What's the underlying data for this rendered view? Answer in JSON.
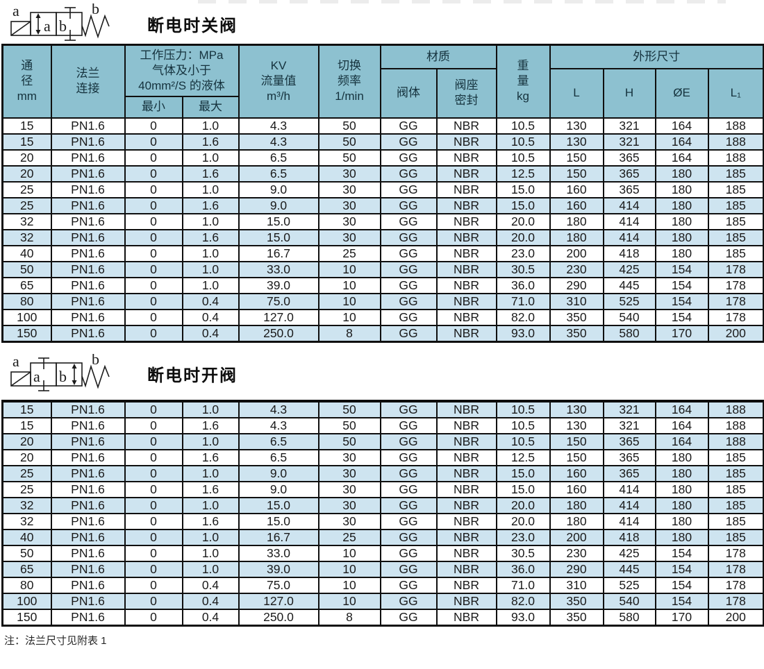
{
  "colors": {
    "header_bg": "#8dc1d0",
    "row_shaded_bg": "#cee4f0",
    "row_bg": "#ffffff",
    "border": "#0f0f0f",
    "text": "#1a1a1a"
  },
  "table_header": {
    "diameter": "通\n径\nmm",
    "flange": "法兰\n连接",
    "pressure": "工作压力：MPa\n气体及小于\n40mm²/S 的液体",
    "pressure_min": "最小",
    "pressure_max": "最大",
    "kv": "KV\n流量值\nm³/h",
    "frequency": "切换\n频率\n1/min",
    "material": "材质",
    "material_body": "阀体",
    "material_seal": "阀座\n密封",
    "weight": "重\n量\nkg",
    "dimensions": "外形尺寸",
    "dim_l": "L",
    "dim_h": "H",
    "dim_e": "ØE",
    "dim_l1": "L₁"
  },
  "sections": [
    {
      "title": "断电时关阀",
      "symbol_labels": {
        "port_a": "a",
        "position_a": "a",
        "position_b": "b",
        "spring_b": "b"
      },
      "first_row_shaded": false,
      "rows": [
        [
          "15",
          "PN1.6",
          "0",
          "1.0",
          "4.3",
          "50",
          "GG",
          "NBR",
          "10.5",
          "130",
          "321",
          "164",
          "188"
        ],
        [
          "15",
          "PN1.6",
          "0",
          "1.6",
          "4.3",
          "50",
          "GG",
          "NBR",
          "10.5",
          "130",
          "321",
          "164",
          "188"
        ],
        [
          "20",
          "PN1.6",
          "0",
          "1.0",
          "6.5",
          "50",
          "GG",
          "NBR",
          "10.5",
          "150",
          "365",
          "164",
          "188"
        ],
        [
          "20",
          "PN1.6",
          "0",
          "1.6",
          "6.5",
          "30",
          "GG",
          "NBR",
          "12.5",
          "150",
          "365",
          "180",
          "185"
        ],
        [
          "25",
          "PN1.6",
          "0",
          "1.0",
          "9.0",
          "30",
          "GG",
          "NBR",
          "15.0",
          "160",
          "365",
          "180",
          "185"
        ],
        [
          "25",
          "PN1.6",
          "0",
          "1.6",
          "9.0",
          "30",
          "GG",
          "NBR",
          "15.0",
          "160",
          "414",
          "180",
          "185"
        ],
        [
          "32",
          "PN1.6",
          "0",
          "1.0",
          "15.0",
          "30",
          "GG",
          "NBR",
          "20.0",
          "180",
          "414",
          "180",
          "185"
        ],
        [
          "32",
          "PN1.6",
          "0",
          "1.6",
          "15.0",
          "30",
          "GG",
          "NBR",
          "20.0",
          "180",
          "414",
          "180",
          "185"
        ],
        [
          "40",
          "PN1.6",
          "0",
          "1.0",
          "16.7",
          "25",
          "GG",
          "NBR",
          "23.0",
          "200",
          "418",
          "180",
          "185"
        ],
        [
          "50",
          "PN1.6",
          "0",
          "1.0",
          "33.0",
          "10",
          "GG",
          "NBR",
          "30.5",
          "230",
          "425",
          "154",
          "178"
        ],
        [
          "65",
          "PN1.6",
          "0",
          "1.0",
          "39.0",
          "10",
          "GG",
          "NBR",
          "36.0",
          "290",
          "445",
          "154",
          "178"
        ],
        [
          "80",
          "PN1.6",
          "0",
          "0.4",
          "75.0",
          "10",
          "GG",
          "NBR",
          "71.0",
          "310",
          "525",
          "154",
          "178"
        ],
        [
          "100",
          "PN1.6",
          "0",
          "0.4",
          "127.0",
          "10",
          "GG",
          "NBR",
          "82.0",
          "350",
          "540",
          "154",
          "178"
        ],
        [
          "150",
          "PN1.6",
          "0",
          "0.4",
          "250.0",
          "8",
          "GG",
          "NBR",
          "93.0",
          "350",
          "580",
          "170",
          "200"
        ]
      ]
    },
    {
      "title": "断电时开阀",
      "symbol_labels": {
        "port_a": "a",
        "position_a": "a",
        "position_b": "b",
        "spring_b": "b"
      },
      "first_row_shaded": true,
      "rows": [
        [
          "15",
          "PN1.6",
          "0",
          "1.0",
          "4.3",
          "50",
          "GG",
          "NBR",
          "10.5",
          "130",
          "321",
          "164",
          "188"
        ],
        [
          "15",
          "PN1.6",
          "0",
          "1.6",
          "4.3",
          "50",
          "GG",
          "NBR",
          "10.5",
          "130",
          "321",
          "164",
          "188"
        ],
        [
          "20",
          "PN1.6",
          "0",
          "1.0",
          "6.5",
          "50",
          "GG",
          "NBR",
          "10.5",
          "150",
          "365",
          "164",
          "188"
        ],
        [
          "20",
          "PN1.6",
          "0",
          "1.6",
          "6.5",
          "30",
          "GG",
          "NBR",
          "12.5",
          "150",
          "365",
          "180",
          "185"
        ],
        [
          "25",
          "PN1.6",
          "0",
          "1.0",
          "9.0",
          "30",
          "GG",
          "NBR",
          "15.0",
          "160",
          "365",
          "180",
          "185"
        ],
        [
          "25",
          "PN1.6",
          "0",
          "1.6",
          "9.0",
          "30",
          "GG",
          "NBR",
          "15.0",
          "160",
          "414",
          "180",
          "185"
        ],
        [
          "32",
          "PN1.6",
          "0",
          "1.0",
          "15.0",
          "30",
          "GG",
          "NBR",
          "20.0",
          "180",
          "414",
          "180",
          "185"
        ],
        [
          "32",
          "PN1.6",
          "0",
          "1.6",
          "15.0",
          "30",
          "GG",
          "NBR",
          "20.0",
          "180",
          "414",
          "180",
          "185"
        ],
        [
          "40",
          "PN1.6",
          "0",
          "1.0",
          "16.7",
          "25",
          "GG",
          "NBR",
          "23.0",
          "200",
          "418",
          "180",
          "185"
        ],
        [
          "50",
          "PN1.6",
          "0",
          "1.0",
          "33.0",
          "10",
          "GG",
          "NBR",
          "30.5",
          "230",
          "425",
          "154",
          "178"
        ],
        [
          "65",
          "PN1.6",
          "0",
          "1.0",
          "39.0",
          "10",
          "GG",
          "NBR",
          "36.0",
          "290",
          "445",
          "154",
          "178"
        ],
        [
          "80",
          "PN1.6",
          "0",
          "0.4",
          "75.0",
          "10",
          "GG",
          "NBR",
          "71.0",
          "310",
          "525",
          "154",
          "178"
        ],
        [
          "100",
          "PN1.6",
          "0",
          "0.4",
          "127.0",
          "10",
          "GG",
          "NBR",
          "82.0",
          "350",
          "540",
          "154",
          "178"
        ],
        [
          "150",
          "PN1.6",
          "0",
          "0.4",
          "250.0",
          "8",
          "GG",
          "NBR",
          "93.0",
          "350",
          "580",
          "170",
          "200"
        ]
      ]
    }
  ],
  "note": "注：法兰尺寸见附表 1"
}
